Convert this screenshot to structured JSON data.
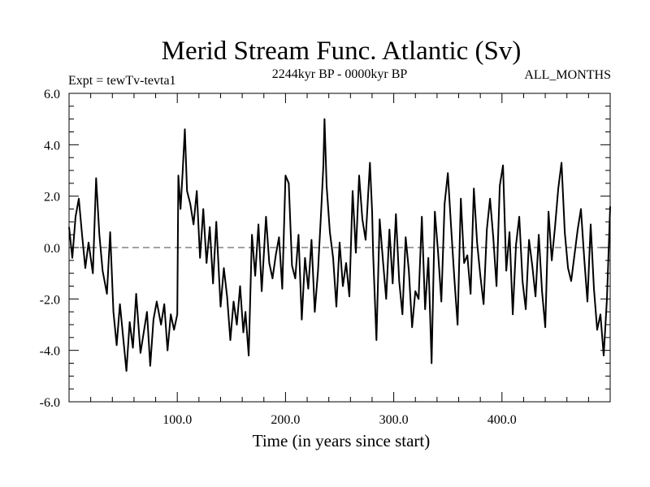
{
  "chart_data": {
    "type": "line",
    "title": "Merid Stream Func. Atlantic (Sv)",
    "subtitle_left": "Expt = tewTv-tevta1",
    "subtitle_center": "2244kyr BP - 0000kyr BP",
    "subtitle_right": "ALL_MONTHS",
    "xlabel": "Time (in years since start)",
    "ylabel": "",
    "xlim": [
      0,
      500
    ],
    "ylim": [
      -6,
      6
    ],
    "xticks": [
      100,
      200,
      300,
      400
    ],
    "xtick_labels": [
      "100.0",
      "200.0",
      "300.0",
      "400.0"
    ],
    "yticks": [
      -6,
      -4,
      -2,
      0,
      2,
      4,
      6
    ],
    "ytick_labels": [
      "-6.0",
      "-4.0",
      "-2.0",
      "0.0",
      "2.0",
      "4.0",
      "6.0"
    ],
    "zero_line": true,
    "series": [
      {
        "name": "Merid Stream Func. Atlantic",
        "x": [
          0,
          3,
          6,
          9,
          12,
          15,
          18,
          22,
          25,
          28,
          31,
          35,
          38,
          41,
          44,
          47,
          50,
          53,
          56,
          59,
          62,
          66,
          69,
          72,
          75,
          78,
          81,
          85,
          88,
          91,
          94,
          97,
          100,
          101,
          103,
          105,
          107,
          109,
          112,
          115,
          118,
          121,
          124,
          127,
          130,
          133,
          136,
          140,
          143,
          146,
          149,
          152,
          155,
          158,
          161,
          163,
          166,
          169,
          172,
          175,
          178,
          182,
          185,
          188,
          191,
          194,
          197,
          200,
          203,
          206,
          209,
          212,
          215,
          218,
          221,
          224,
          227,
          230,
          233,
          235,
          236,
          238,
          241,
          244,
          247,
          250,
          253,
          256,
          259,
          262,
          265,
          268,
          271,
          274,
          278,
          280,
          281,
          284,
          287,
          290,
          293,
          296,
          299,
          302,
          305,
          308,
          311,
          314,
          317,
          320,
          323,
          326,
          329,
          332,
          335,
          338,
          341,
          344,
          347,
          350,
          353,
          356,
          359,
          362,
          365,
          368,
          371,
          374,
          377,
          380,
          383,
          386,
          389,
          392,
          395,
          398,
          401,
          404,
          407,
          410,
          413,
          416,
          419,
          422,
          425,
          428,
          431,
          434,
          437,
          440,
          443,
          446,
          449,
          452,
          455,
          458,
          461,
          464,
          467,
          470,
          473,
          476,
          479,
          482,
          485,
          488,
          491,
          494,
          497,
          500
        ],
        "values": [
          0.8,
          -0.4,
          1.2,
          1.9,
          0.5,
          -0.8,
          0.2,
          -1.0,
          2.7,
          0.5,
          -0.9,
          -1.8,
          0.6,
          -2.5,
          -3.8,
          -2.2,
          -3.5,
          -4.8,
          -2.9,
          -3.9,
          -1.8,
          -4.1,
          -3.3,
          -2.5,
          -4.6,
          -2.8,
          -2.1,
          -3.0,
          -2.2,
          -4.0,
          -2.6,
          -3.2,
          -2.6,
          2.8,
          1.5,
          3.0,
          4.6,
          2.2,
          1.7,
          0.9,
          2.2,
          -0.4,
          1.5,
          -0.6,
          0.8,
          -1.4,
          1.0,
          -2.3,
          -0.8,
          -1.9,
          -3.6,
          -2.1,
          -3.0,
          -1.5,
          -3.3,
          -2.5,
          -4.2,
          0.5,
          -1.1,
          0.9,
          -1.7,
          1.2,
          -0.6,
          -1.2,
          -0.3,
          0.4,
          -1.6,
          2.8,
          2.5,
          -0.7,
          -1.2,
          0.5,
          -2.8,
          -0.4,
          -1.6,
          0.3,
          -2.5,
          -0.9,
          1.5,
          3.2,
          5.0,
          2.4,
          0.6,
          -0.4,
          -2.3,
          0.2,
          -1.5,
          -0.6,
          -1.9,
          2.2,
          -0.2,
          2.8,
          1.1,
          0.3,
          3.3,
          1.4,
          -0.3,
          -3.6,
          1.1,
          -0.5,
          -2.0,
          0.7,
          -1.4,
          1.3,
          -1.3,
          -2.6,
          0.4,
          -0.9,
          -3.1,
          -1.7,
          -2.0,
          1.2,
          -2.4,
          -0.4,
          -4.5,
          1.4,
          -0.2,
          -2.1,
          1.7,
          2.9,
          0.8,
          -1.2,
          -3.0,
          1.9,
          -0.6,
          -0.3,
          -1.8,
          2.3,
          0.2,
          -1.1,
          -2.2,
          0.7,
          1.9,
          0.4,
          -1.5,
          2.4,
          3.2,
          -0.9,
          0.6,
          -2.6,
          0.1,
          1.2,
          -1.3,
          -2.4,
          0.3,
          -0.7,
          -1.9,
          0.5,
          -1.7,
          -3.1,
          1.4,
          -0.5,
          0.8,
          2.3,
          3.3,
          0.6,
          -0.8,
          -1.3,
          -0.3,
          0.7,
          1.5,
          -0.4,
          -2.1,
          0.9,
          -1.6,
          -3.2,
          -2.6,
          -4.2,
          -2.0,
          1.6
        ]
      }
    ]
  }
}
